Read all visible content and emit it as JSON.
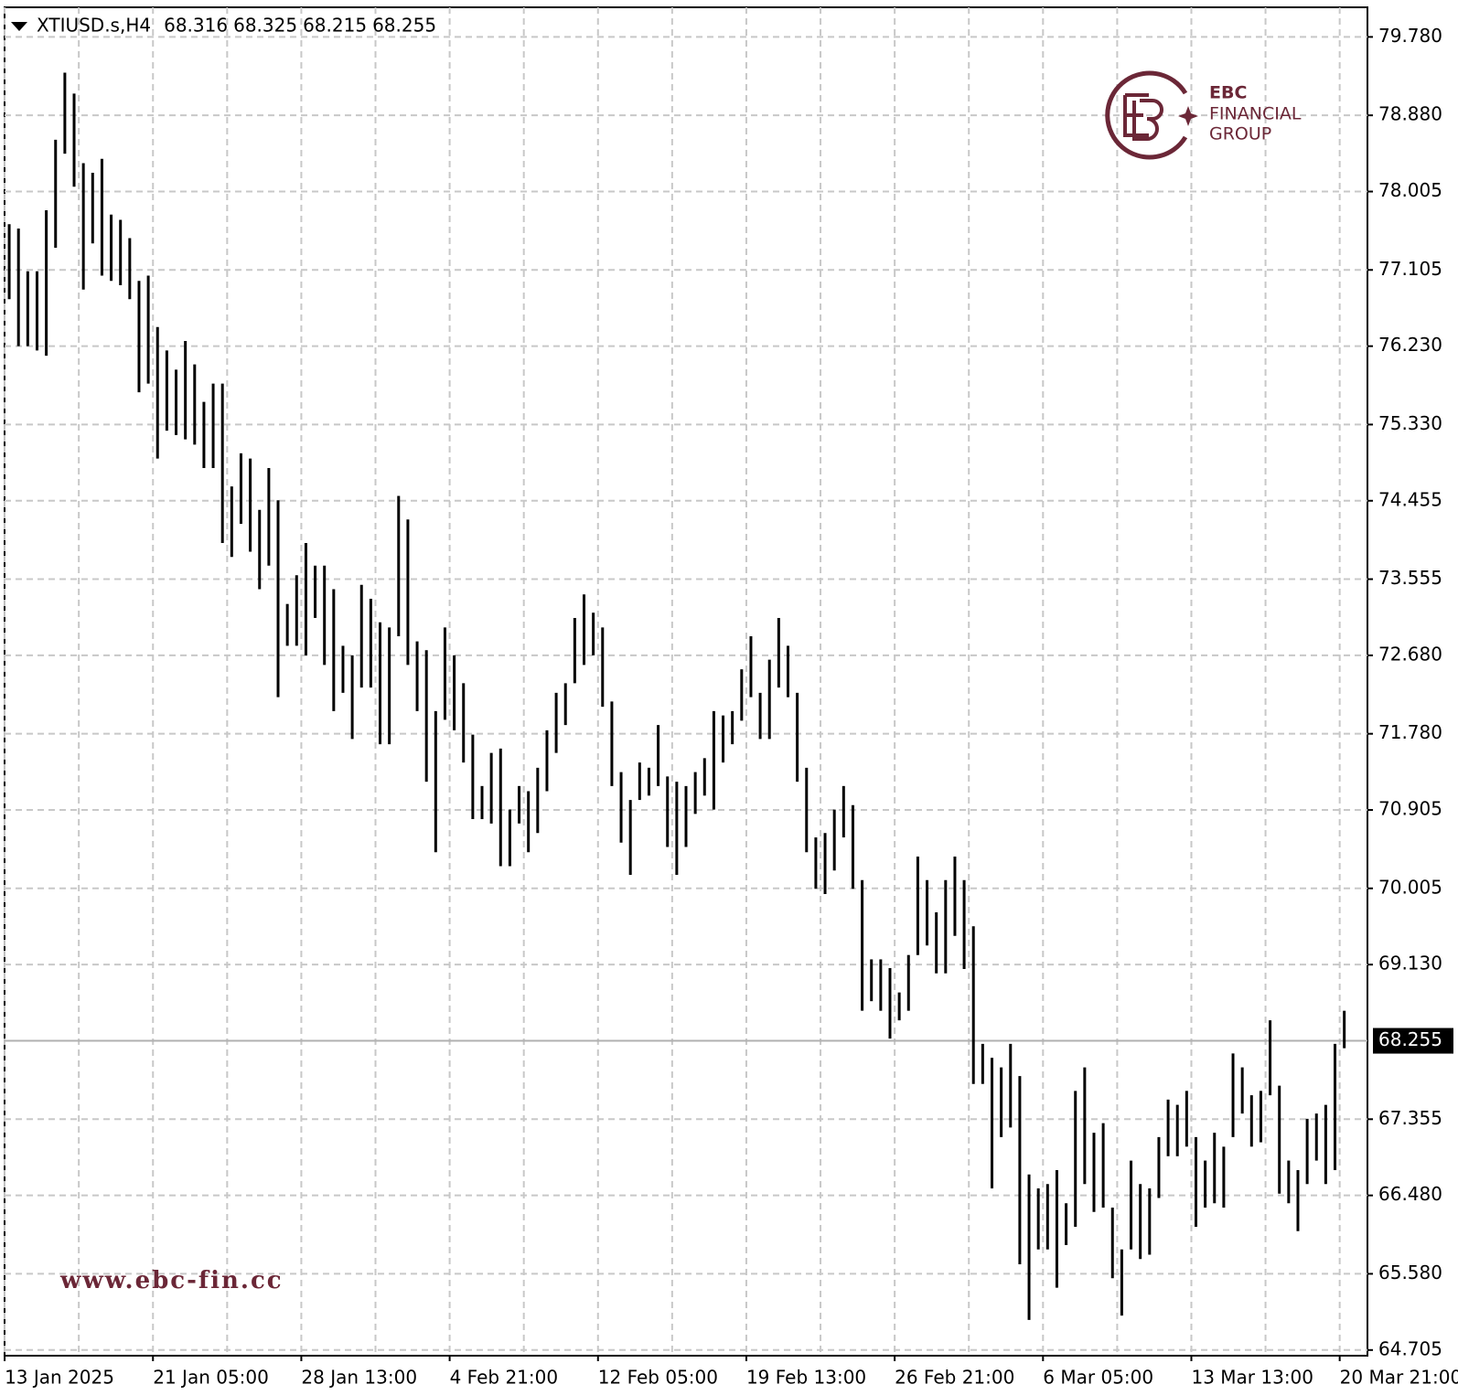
{
  "chart_data": {
    "type": "range_bar",
    "symbol": "XTIUSD.s,H4",
    "header_values": [
      68.316,
      68.325,
      68.215,
      68.255
    ],
    "watermark_brand": [
      "EBC",
      "FINANCIAL",
      "GROUP"
    ],
    "watermark_url": "www.ebc-fin.cc",
    "color": "#000000",
    "grid": true,
    "last_price": 68.255,
    "xlim": [
      -0.5,
      146.5
    ],
    "xticks": [
      {
        "value": 0,
        "label": "13 Jan 2025"
      },
      {
        "value": 16,
        "label": "21 Jan 05:00"
      },
      {
        "value": 32,
        "label": "28 Jan 13:00"
      },
      {
        "value": 48,
        "label": "4 Feb 21:00"
      },
      {
        "value": 64,
        "label": "12 Feb 05:00"
      },
      {
        "value": 80,
        "label": "19 Feb 13:00"
      },
      {
        "value": 96,
        "label": "26 Feb 21:00"
      },
      {
        "value": 112,
        "label": "6 Mar 05:00"
      },
      {
        "value": 128,
        "label": "13 Mar 13:00"
      },
      {
        "value": 144,
        "label": "20 Mar 21:00"
      }
    ],
    "ylim": [
      64.64,
      80.12
    ],
    "yticks": [
      {
        "value": 79.78,
        "label": "79.780"
      },
      {
        "value": 78.88,
        "label": "78.880"
      },
      78.005,
      77.105,
      {
        "value": 76.23,
        "label": "76.230"
      },
      {
        "value": 75.33,
        "label": "75.330"
      },
      74.455,
      73.555,
      {
        "value": 72.68,
        "label": "72.680"
      },
      {
        "value": 71.78,
        "label": "71.780"
      },
      70.905,
      70.005,
      {
        "value": 69.13,
        "label": "69.130"
      },
      67.355,
      {
        "value": 66.48,
        "label": "66.480"
      },
      {
        "value": 65.58,
        "label": "65.580"
      },
      64.705
    ],
    "high": [
      77.63,
      77.58,
      77.09,
      77.09,
      77.79,
      78.6,
      79.37,
      79.13,
      78.33,
      78.22,
      78.38,
      77.74,
      77.68,
      77.47,
      76.98,
      77.04,
      76.45,
      76.18,
      75.96,
      76.29,
      76.02,
      75.59,
      75.8,
      75.8,
      74.62,
      75.0,
      74.94,
      74.35,
      74.83,
      74.46,
      73.27,
      73.6,
      73.97,
      73.71,
      73.71,
      73.44,
      72.79,
      72.68,
      73.49,
      73.33,
      73.06,
      73.0,
      74.51,
      74.24,
      72.84,
      72.74,
      72.04,
      73.0,
      72.68,
      72.36,
      71.77,
      71.18,
      71.56,
      71.61,
      70.91,
      71.18,
      71.12,
      71.39,
      71.82,
      72.25,
      72.36,
      73.11,
      73.38,
      73.17,
      73.0,
      72.15,
      71.34,
      71.02,
      71.45,
      71.39,
      71.88,
      71.29,
      71.23,
      71.18,
      71.34,
      71.5,
      72.04,
      71.99,
      72.04,
      72.52,
      72.9,
      72.25,
      72.63,
      73.11,
      72.79,
      72.25,
      71.39,
      70.59,
      70.64,
      70.91,
      71.18,
      70.96,
      70.1,
      69.19,
      69.19,
      69.09,
      68.81,
      69.24,
      70.37,
      70.1,
      69.73,
      70.1,
      70.37,
      70.1,
      69.57,
      68.22,
      68.06,
      67.95,
      68.22,
      67.85,
      66.72,
      66.56,
      66.61,
      66.77,
      66.39,
      67.68,
      67.95,
      67.2,
      67.31,
      66.34,
      65.86,
      66.88,
      66.61,
      66.56,
      67.15,
      67.58,
      67.52,
      67.68,
      67.15,
      66.88,
      67.2,
      67.04,
      68.11,
      67.95,
      67.63,
      67.68,
      68.49,
      67.74,
      66.88,
      66.77,
      67.36,
      67.42,
      67.52,
      68.22,
      68.6
    ],
    "low": [
      76.77,
      76.23,
      76.23,
      76.18,
      76.12,
      77.36,
      78.44,
      78.06,
      76.88,
      77.41,
      77.04,
      76.98,
      76.93,
      76.77,
      75.7,
      75.8,
      74.94,
      75.26,
      75.21,
      75.16,
      75.1,
      74.83,
      74.83,
      73.97,
      73.81,
      74.19,
      73.87,
      73.44,
      73.71,
      72.2,
      72.79,
      72.79,
      72.68,
      73.11,
      72.57,
      72.04,
      72.25,
      71.72,
      72.31,
      72.31,
      71.66,
      71.66,
      72.9,
      72.57,
      72.04,
      71.23,
      70.42,
      71.94,
      71.82,
      71.45,
      70.8,
      70.8,
      70.75,
      70.26,
      70.26,
      70.75,
      70.42,
      70.64,
      71.12,
      71.56,
      71.88,
      72.36,
      72.57,
      72.68,
      72.09,
      71.18,
      70.53,
      70.16,
      71.02,
      71.07,
      71.18,
      70.48,
      70.16,
      70.48,
      70.86,
      71.07,
      70.91,
      71.45,
      71.66,
      71.93,
      72.2,
      71.72,
      71.72,
      72.31,
      72.2,
      71.23,
      70.42,
      70.0,
      69.94,
      70.21,
      70.59,
      70.0,
      68.6,
      68.71,
      68.6,
      68.28,
      68.49,
      68.6,
      69.24,
      69.35,
      69.03,
      69.03,
      69.46,
      69.08,
      67.76,
      67.76,
      66.56,
      67.15,
      67.26,
      65.69,
      65.05,
      65.86,
      65.86,
      65.42,
      65.91,
      66.12,
      66.61,
      66.29,
      66.34,
      65.53,
      65.1,
      65.86,
      65.75,
      65.8,
      66.45,
      66.93,
      66.93,
      67.04,
      66.12,
      66.34,
      66.39,
      66.34,
      67.15,
      67.42,
      67.04,
      67.09,
      67.63,
      66.5,
      66.39,
      66.07,
      66.61,
      66.88,
      66.61,
      66.77,
      68.17
    ]
  }
}
